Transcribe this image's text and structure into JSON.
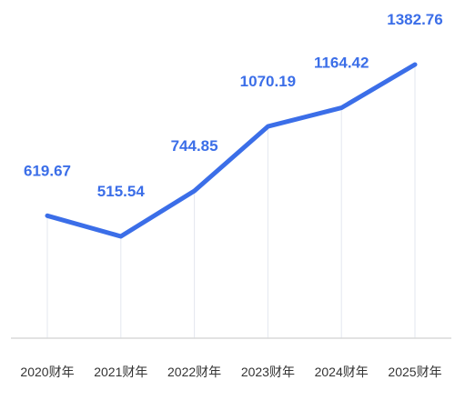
{
  "colors": {
    "line": "#3b6ee8",
    "label": "#3b6ee8",
    "axis": "#d9d9d9",
    "drop_line": "#e3e7ef",
    "tick_text": "#333333"
  },
  "chart_data": {
    "type": "line",
    "categories": [
      "2020财年",
      "2021财年",
      "2022财年",
      "2023财年",
      "2024财年",
      "2025财年"
    ],
    "series": [
      {
        "values": [
          619.67,
          515.54,
          744.85,
          1070.19,
          1164.42,
          1382.76
        ],
        "labels": [
          "619.67",
          "515.54",
          "744.85",
          "1070.19",
          "1164.42",
          "1382.76"
        ]
      }
    ],
    "title": "",
    "xlabel": "",
    "ylabel": "",
    "grid": false,
    "legend": "none",
    "data_labels": true,
    "drop_lines": true
  }
}
